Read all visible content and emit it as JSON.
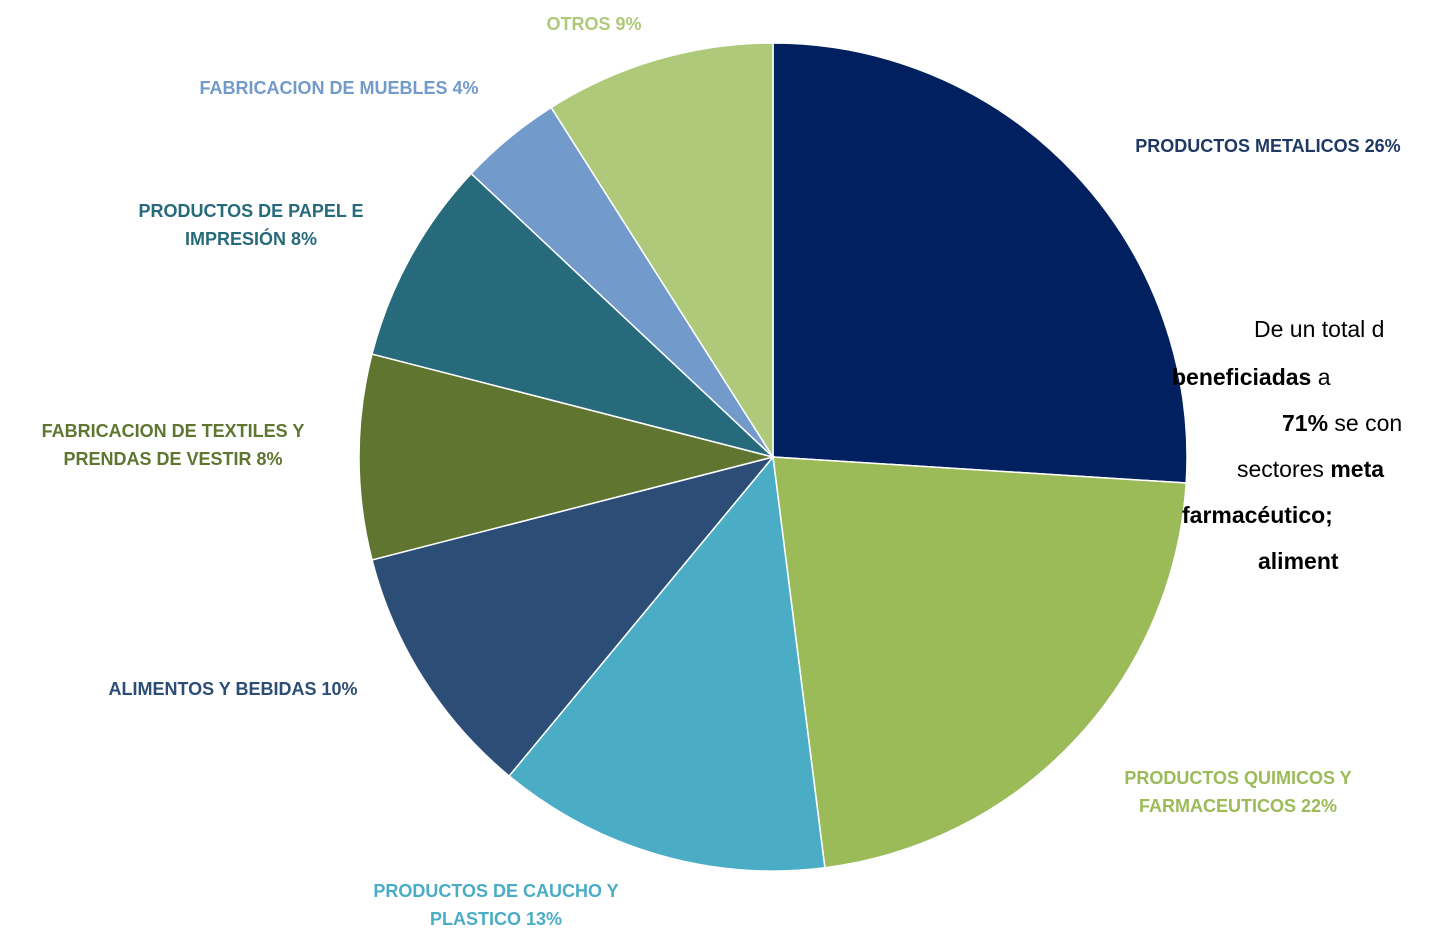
{
  "chart_data": {
    "type": "pie",
    "categories": [
      "PRODUCTOS METALICOS",
      "PRODUCTOS QUIMICOS Y FARMACEUTICOS",
      "PRODUCTOS DE CAUCHO Y PLASTICO",
      "ALIMENTOS Y BEBIDAS",
      "FABRICACION DE TEXTILES Y PRENDAS DE VESTIR",
      "PRODUCTOS DE PAPEL E IMPRESIÓN",
      "FABRICACION DE MUEBLES",
      "OTROS"
    ],
    "values": [
      26,
      22,
      13,
      10,
      8,
      8,
      4,
      9
    ],
    "value_labels": [
      "26%",
      "22%",
      "13%",
      "10%",
      "8%",
      "8%",
      "4%",
      "9%"
    ],
    "colors": [
      "#002060",
      "#9bbb59",
      "#4bacc6",
      "#2c4d75",
      "#5f7530",
      "#276a7c",
      "#729aca",
      "#afc97a"
    ],
    "annotation": [
      [
        {
          "text": "De un total d",
          "bold": false
        }
      ],
      [
        {
          "text": "beneficiadas",
          "bold": true
        },
        {
          "text": " a",
          "bold": false
        }
      ],
      [
        {
          "text": "71%",
          "bold": true
        },
        {
          "text": " se con",
          "bold": false
        }
      ],
      [
        {
          "text": "sectores ",
          "bold": false
        },
        {
          "text": "meta",
          "bold": true
        }
      ],
      [
        {
          "text": "farmacéutico;",
          "bold": true
        }
      ],
      [
        {
          "text": "aliment",
          "bold": true
        }
      ]
    ]
  }
}
